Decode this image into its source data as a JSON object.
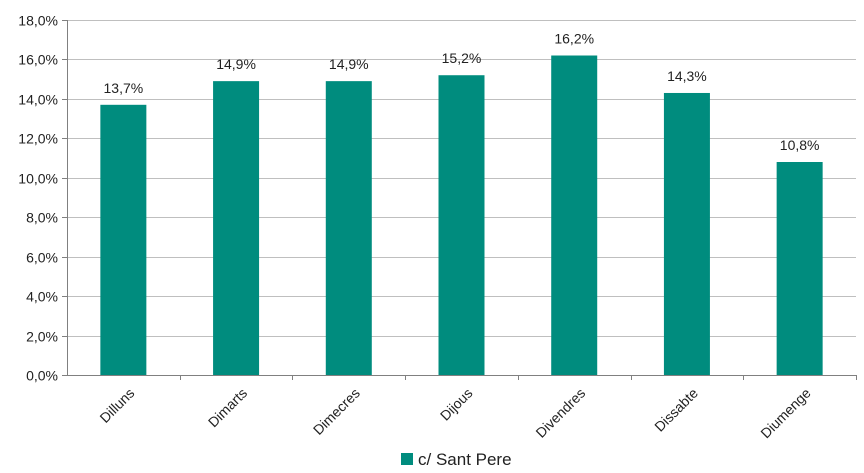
{
  "chart_data": {
    "type": "bar",
    "categories": [
      "Dilluns",
      "Dimarts",
      "Dimecres",
      "Dijous",
      "Divendres",
      "Dissabte",
      "Diumenge"
    ],
    "series": [
      {
        "name": "c/ Sant Pere",
        "values": [
          13.7,
          14.9,
          14.9,
          15.2,
          16.2,
          14.3,
          10.8
        ],
        "data_labels": [
          "13,7%",
          "14,9%",
          "14,9%",
          "15,2%",
          "16,2%",
          "14,3%",
          "10,8%"
        ]
      }
    ],
    "ylim": [
      0,
      18
    ],
    "y_ticks": [
      0,
      2,
      4,
      6,
      8,
      10,
      12,
      14,
      16,
      18
    ],
    "y_tick_labels": [
      "0,0%",
      "2,0%",
      "4,0%",
      "6,0%",
      "8,0%",
      "10,0%",
      "12,0%",
      "14,0%",
      "16,0%",
      "18,0%"
    ],
    "grid": true,
    "legend_position": "bottom",
    "colors": {
      "bar": "#008C7E",
      "grid": "#BFBFBF",
      "axis": "#808080"
    }
  }
}
